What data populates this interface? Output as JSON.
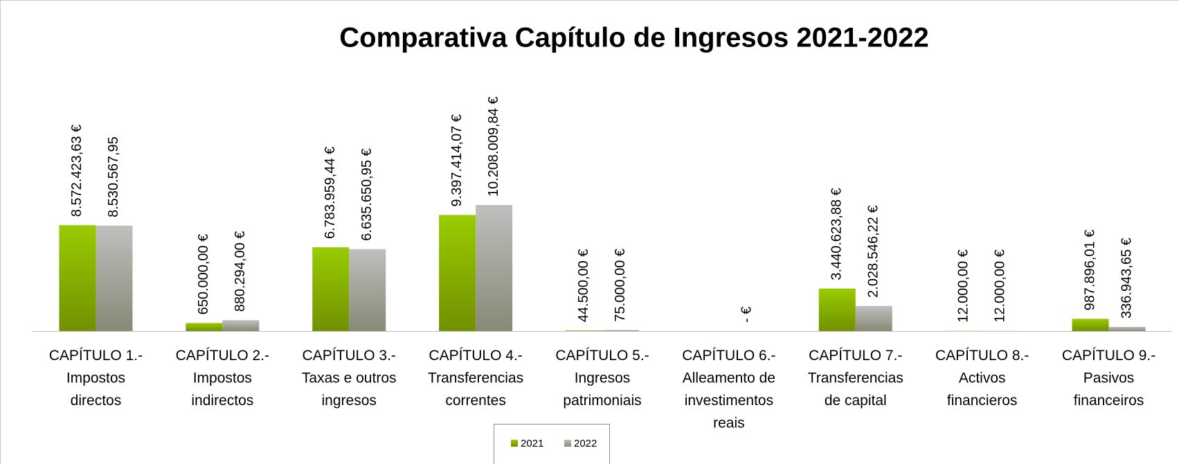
{
  "chart_data": {
    "type": "bar",
    "title": "Comparativa Capítulo de Ingresos 2021-2022",
    "categories": [
      [
        "CAPÍTULO 1.-",
        "Impostos",
        "directos"
      ],
      [
        "CAPÍTULO 2.-",
        "Impostos",
        "indirectos"
      ],
      [
        "CAPÍTULO 3.-",
        "Taxas e outros",
        "ingresos"
      ],
      [
        "CAPÍTULO 4.-",
        "Transferencias",
        "correntes"
      ],
      [
        "CAPÍTULO 5.-",
        "Ingresos",
        "patrimoniais"
      ],
      [
        "CAPÍTULO 6.-",
        "Alleamento de",
        "investimentos",
        "reais"
      ],
      [
        "CAPÍTULO 7.-",
        "Transferencias",
        "de capital"
      ],
      [
        "CAPÍTULO 8.-",
        "Activos",
        "financieros"
      ],
      [
        "CAPÍTULO 9.-",
        "Pasivos",
        "financeiros"
      ]
    ],
    "series": [
      {
        "name": "2021",
        "color": "#99cc00",
        "values": [
          8572423.63,
          650000.0,
          6783959.44,
          9397414.07,
          44500.0,
          0,
          3440623.88,
          12000.0,
          987896.01
        ],
        "value_labels": [
          "8.572.423,63 €",
          "650.000,00 €",
          "6.783.959,44 €",
          "9.397.414,07 €",
          "44.500,00 €",
          null,
          "3.440.623,88 €",
          "12.000,00 €",
          "987.896,01 €"
        ]
      },
      {
        "name": "2022",
        "color": "#bfbfbf",
        "values": [
          8530567.95,
          880294.0,
          6635650.95,
          10208009.84,
          75000.0,
          0,
          2028546.22,
          12000.0,
          336943.65
        ],
        "value_labels": [
          "8.530.567,95",
          "880.294,00 €",
          "6.635.650,95 €",
          "10.208.009,84 €",
          "75.000,00 €",
          "- €",
          "2.028.546,22 €",
          "12.000,00 €",
          "336.943,65 €"
        ]
      }
    ],
    "legend": "bottom"
  }
}
